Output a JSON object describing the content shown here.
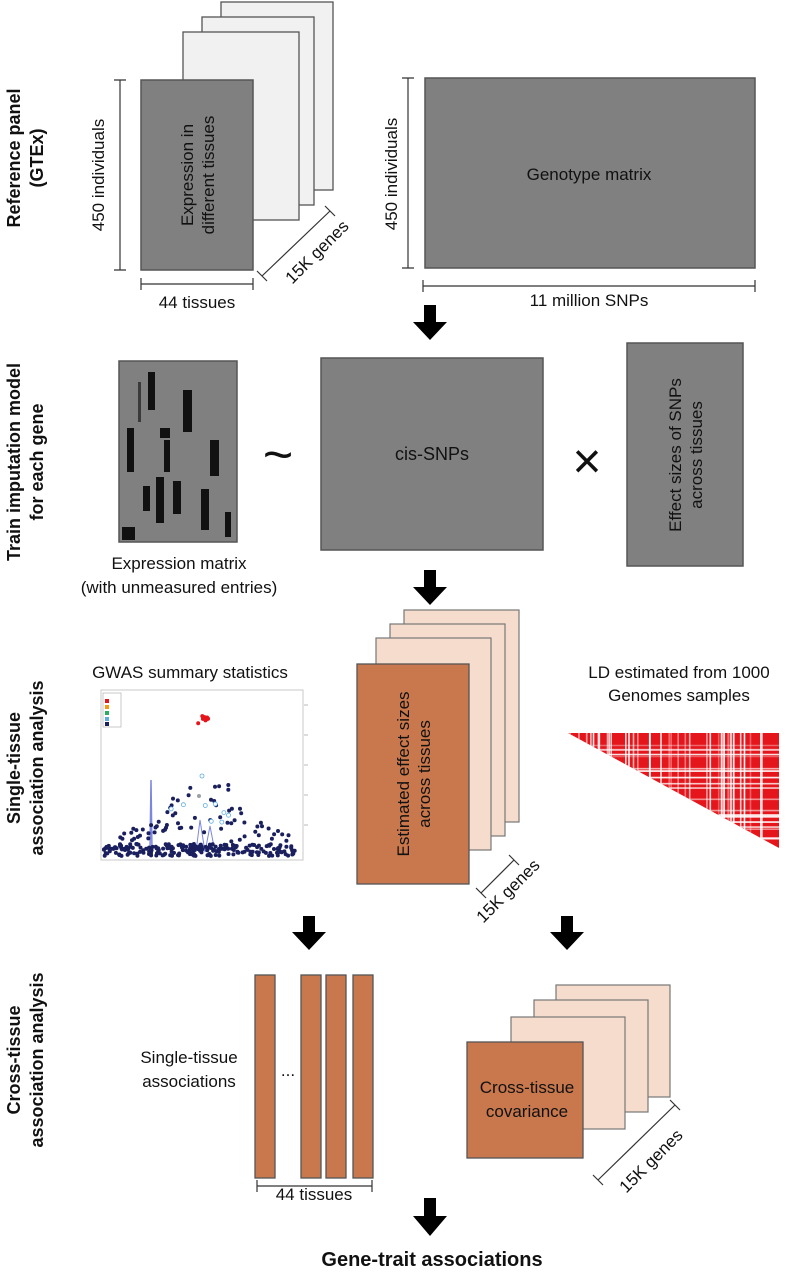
{
  "sections": [
    {
      "label_line1": "Reference panel",
      "label_line2": "(GTEx)"
    },
    {
      "label_line1": "Train imputation model",
      "label_line2": "for each gene"
    },
    {
      "label_line1": "Single-tissue",
      "label_line2": "association analysis"
    },
    {
      "label_line1": "Cross-tissue",
      "label_line2": "association analysis"
    }
  ],
  "reference_panel": {
    "expression_line1": "Expression in",
    "expression_line2": "different tissues",
    "individuals_left": "450 individuals",
    "tissues": "44 tissues",
    "genes": "15K genes",
    "individuals_right": "450 individuals",
    "genotype": "Genotype matrix",
    "snps": "11 million SNPs"
  },
  "imputation": {
    "expression_caption_line1": "Expression matrix",
    "expression_caption_line2": "(with unmeasured entries)",
    "tilde": "~",
    "cis_snps": "cis-SNPs",
    "times": "×",
    "effect_line1": "Effect sizes of SNPs",
    "effect_line2": "across tissues"
  },
  "single_tissue": {
    "gwas_title": "GWAS summary statistics",
    "effect_line1": "Estimated effect sizes",
    "effect_line2": "across tissues",
    "genes": "15K genes",
    "ld_line1": "LD estimated from 1000",
    "ld_line2": "Genomes samples"
  },
  "cross_tissue": {
    "single_line1": "Single-tissue",
    "single_line2": "associations",
    "ellipsis": "...",
    "tissues": "44 tissues",
    "covariance_line1": "Cross-tissue",
    "covariance_line2": "covariance",
    "genes": "15K genes"
  },
  "final": "Gene-trait associations",
  "colors": {
    "gray_box": "#808080",
    "light_box": "#f1f1f1",
    "orange_box": "#c8784c",
    "light_orange_box": "#f6dccd",
    "ld_red": "#e4161c",
    "gwas_dots": "#1a1f5e"
  }
}
